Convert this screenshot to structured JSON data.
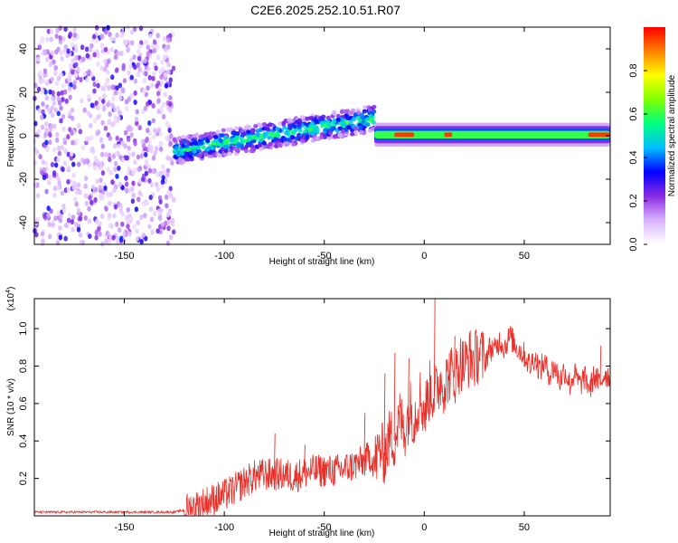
{
  "title": "C2E6.2025.252.10.51.R07",
  "chart_data": [
    {
      "type": "heatmap",
      "title": "C2E6.2025.252.10.51.R07",
      "xlabel": "Height of straight line (km)",
      "ylabel": "Frequency (Hz)",
      "xlim": [
        -195,
        93
      ],
      "ylim": [
        -50,
        50
      ],
      "xticks": [
        -150,
        -100,
        -50,
        0,
        50
      ],
      "yticks": [
        -40,
        -20,
        0,
        20,
        40
      ],
      "colorbar": {
        "label": "Normalized spectral amplitude",
        "range": [
          0,
          1
        ],
        "ticks": [
          0.0,
          0.2,
          0.4,
          0.6,
          0.8
        ],
        "colors": [
          "#ffffff",
          "#d9b3ff",
          "#8a2be2",
          "#0000ff",
          "#00bfff",
          "#00ff80",
          "#80ff00",
          "#ffff00",
          "#ff8000",
          "#ff0000"
        ]
      },
      "regions": [
        {
          "name": "noise",
          "x_range": [
            -195,
            -125
          ],
          "freq_range": [
            -50,
            50
          ],
          "amplitude": 0.15
        },
        {
          "name": "rising signal",
          "x_range": [
            -125,
            -25
          ],
          "center_freq_start": -7,
          "center_freq_end": 8,
          "half_width": 6,
          "amplitude": 0.45
        },
        {
          "name": "steady signal",
          "x_range": [
            -25,
            93
          ],
          "center_freq": 0.5,
          "half_width": 2.5,
          "amplitude": 0.6
        },
        {
          "name": "peak segments",
          "x_ranges": [
            [
              -15,
              -5
            ],
            [
              10,
              14
            ],
            [
              82,
              93
            ]
          ],
          "center_freq": 0.5,
          "amplitude": 0.95
        }
      ]
    },
    {
      "type": "line",
      "xlabel": "Height of straight line (km)",
      "ylabel": "SNR (10 * v/v)",
      "multiplier": "(x10",
      "multiplier_exp": "4",
      "multiplier_close": ")",
      "xlim": [
        -195,
        93
      ],
      "ylim": [
        0,
        1.16
      ],
      "xticks": [
        -150,
        -100,
        -50,
        0,
        50
      ],
      "yticks": [
        0.2,
        0.4,
        0.6,
        0.8,
        1.0
      ],
      "ytick_labels": [
        "0.2",
        "0.4",
        "0.6",
        "0.8",
        "1.0"
      ],
      "color": "#e8302a",
      "series": [
        {
          "name": "SNR",
          "x": [
            -195,
            -180,
            -160,
            -140,
            -125,
            -120,
            -112,
            -105,
            -100,
            -95,
            -90,
            -85,
            -80,
            -75,
            -70,
            -65,
            -60,
            -55,
            -50,
            -45,
            -40,
            -35,
            -30,
            -27,
            -25,
            -22,
            -20,
            -17,
            -15,
            -12,
            -10,
            -7,
            -5,
            -2,
            0,
            3,
            5,
            8,
            10,
            13,
            15,
            18,
            20,
            23,
            25,
            28,
            30,
            33,
            35,
            38,
            40,
            43,
            45,
            48,
            50,
            53,
            55,
            58,
            60,
            63,
            65,
            68,
            70,
            73,
            75,
            78,
            80,
            83,
            85,
            88,
            90,
            93
          ],
          "y": [
            0.02,
            0.02,
            0.02,
            0.02,
            0.02,
            0.03,
            0.06,
            0.09,
            0.11,
            0.14,
            0.18,
            0.21,
            0.22,
            0.22,
            0.22,
            0.21,
            0.23,
            0.24,
            0.24,
            0.24,
            0.25,
            0.27,
            0.29,
            0.32,
            0.28,
            0.36,
            0.32,
            0.43,
            0.4,
            0.53,
            0.45,
            0.58,
            0.52,
            0.64,
            0.55,
            0.68,
            0.64,
            0.72,
            0.7,
            0.77,
            0.74,
            0.82,
            0.8,
            0.85,
            0.83,
            0.88,
            0.82,
            0.9,
            0.88,
            0.94,
            0.9,
            0.96,
            0.92,
            0.88,
            0.86,
            0.8,
            0.85,
            0.78,
            0.82,
            0.75,
            0.8,
            0.72,
            0.78,
            0.7,
            0.76,
            0.7,
            0.74,
            0.68,
            0.75,
            0.7,
            0.76,
            0.74
          ],
          "spikes": [
            [
              -75,
              0.44
            ],
            [
              -60,
              0.38
            ],
            [
              -30,
              0.55
            ],
            [
              -20,
              0.76
            ],
            [
              -15,
              0.87
            ],
            [
              -8,
              0.84
            ],
            [
              5,
              1.16
            ],
            [
              15,
              0.96
            ],
            [
              42,
              1.0
            ],
            [
              88,
              0.91
            ]
          ]
        }
      ]
    }
  ]
}
